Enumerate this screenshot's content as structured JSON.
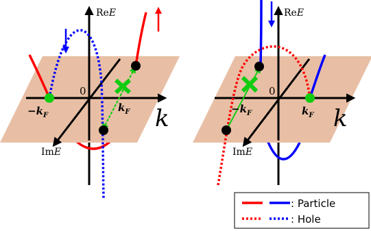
{
  "panels": [
    {
      "id": "left",
      "axis_re": "Re",
      "axis_im": "Im",
      "axis_E": "E",
      "axis_k": "k",
      "origin": "0",
      "marker_neg_kf": "−k",
      "marker_pos_kf": "k",
      "subscript_F": "F"
    },
    {
      "id": "right",
      "axis_re": "Re",
      "axis_im": "Im",
      "axis_E": "E",
      "axis_k": "k",
      "origin": "0",
      "marker_neg_kf": "−k",
      "marker_pos_kf": "k",
      "subscript_F": "F"
    }
  ],
  "legend": {
    "particle": ": Particle",
    "hole": ": Hole"
  },
  "colors": {
    "plane": "#e8bfa5",
    "red": "#ff0000",
    "blue": "#0000ff",
    "green": "#11cc11",
    "axis": "#000000"
  }
}
